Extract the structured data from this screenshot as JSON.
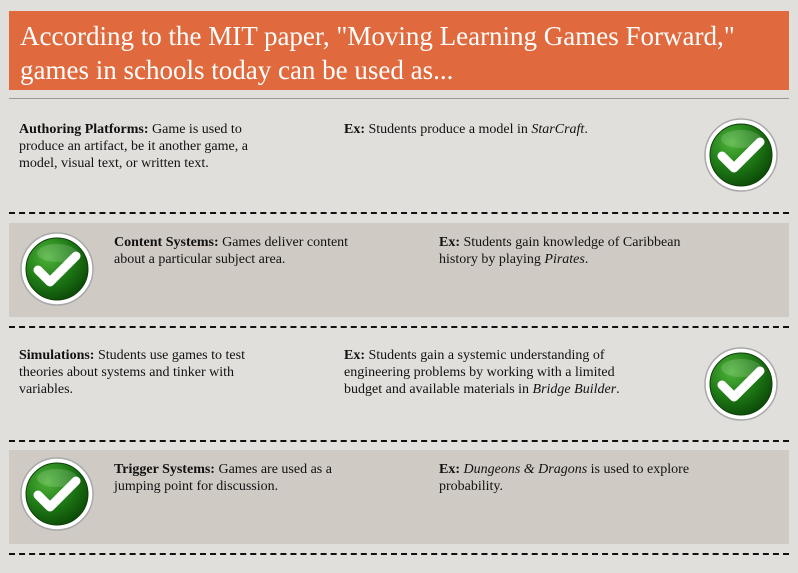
{
  "header": {
    "line1": "According to the MIT paper, \"Moving Learning Games Forward,\"",
    "line2": "games in schools today can be used as..."
  },
  "rows": [
    {
      "term": "Authoring Platforms:",
      "desc": " Game is used to produce an artifact, be it another game, a model, visual text, or written text.",
      "ex_label": "Ex:",
      "ex_pre": " Students produce a model in ",
      "ex_title": "StarCraft",
      "ex_post": "."
    },
    {
      "term": "Content Systems:",
      "desc": " Games deliver content about a particular subject area.",
      "ex_label": "Ex:",
      "ex_pre": " Students gain knowledge of Caribbean history by playing ",
      "ex_title": "Pirates",
      "ex_post": "."
    },
    {
      "term": "Simulations:",
      "desc": " Students use games to test theories about systems and tinker with variables.",
      "ex_label": "Ex:",
      "ex_pre": " Students gain a systemic understanding of engineering problems by working with a limited budget and available materials in ",
      "ex_title": "Bridge Builder",
      "ex_post": "."
    },
    {
      "term": "Trigger Systems:",
      "desc": " Games are used as a jumping point for discussion.",
      "ex_label": "Ex:",
      "ex_pre": " ",
      "ex_title": "Dungeons & Dragons",
      "ex_post": " is used to explore probability."
    }
  ],
  "icons": {
    "check": "checkmark-icon"
  },
  "colors": {
    "header_bg": "#e06a3d",
    "shaded_row": "#cfcac4",
    "check_green": "#1f7a16"
  }
}
